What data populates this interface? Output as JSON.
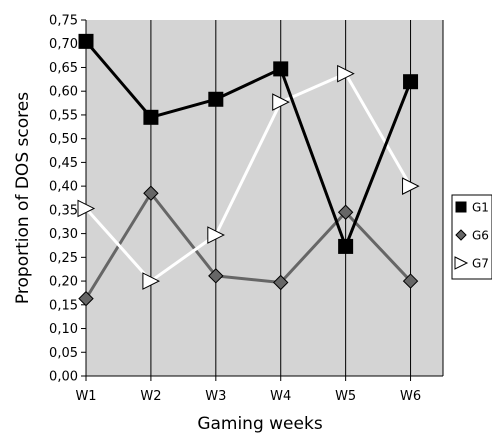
{
  "chart_data": {
    "type": "line",
    "xlabel": "Gaming weeks",
    "ylabel": "Proportion of DOS scores",
    "ylim": [
      0,
      0.75
    ],
    "y_ticks": [
      "0,00",
      "0,05",
      "0,10",
      "0,15",
      "0,20",
      "0,25",
      "0,30",
      "0,35",
      "0,40",
      "0,45",
      "0,50",
      "0,55",
      "0,60",
      "0,65",
      "0,70",
      "0,75"
    ],
    "categories": [
      "W1",
      "W2",
      "W3",
      "W4",
      "W5",
      "W6"
    ],
    "grid": "vertical",
    "legend_position": "right",
    "plot_background": "#d4d4d4",
    "series": [
      {
        "name": "G1",
        "values": [
          0.705,
          0.545,
          0.583,
          0.647,
          0.273,
          0.62
        ],
        "color": "#000000",
        "marker": "square",
        "marker_fill": "#000000"
      },
      {
        "name": "G6",
        "values": [
          0.163,
          0.385,
          0.211,
          0.197,
          0.345,
          0.2
        ],
        "color": "#666666",
        "marker": "diamond",
        "marker_fill": "#666666"
      },
      {
        "name": "G7",
        "values": [
          0.353,
          0.2,
          0.297,
          0.577,
          0.637,
          0.4
        ],
        "color": "#ffffff",
        "marker": "triangle-right",
        "marker_fill": "#ffffff"
      }
    ]
  }
}
